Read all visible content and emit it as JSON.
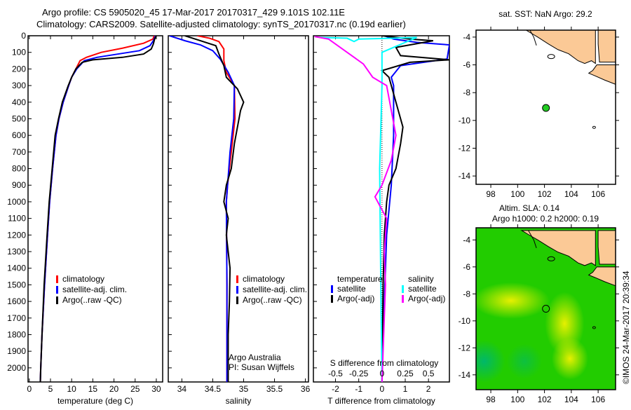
{
  "title_line1": "Argo profile: CS 5905020_45 17-Mar-2017 20170317_429 9.101S 102.11E",
  "title_line2": "Climatology: CARS2009. Satellite-adjusted climatology: synTS_20170317.nc (0.19d earlier)",
  "credit": "Argo Australia",
  "pi": "PI: Susan Wijffels",
  "copyright": "©IMOS 24-Mar-2017 20:39:34",
  "colors": {
    "climatology": "#ff0000",
    "satellite": "#0000ff",
    "argo": "#000000",
    "sal_satellite": "#00ffff",
    "sal_argo": "#ff00ff",
    "land": "#fbc996",
    "float_marker": "#22cc22"
  },
  "chart_data": [
    {
      "type": "line",
      "xlabel": "temperature (deg C)",
      "ylabel": "",
      "xlim": [
        -0.3,
        31.5
      ],
      "ylim": [
        2085,
        0
      ],
      "xticks": [
        0,
        5,
        10,
        15,
        20,
        25,
        30
      ],
      "yticks": [
        0,
        100,
        200,
        300,
        400,
        500,
        600,
        700,
        800,
        900,
        1000,
        1100,
        1200,
        1300,
        1400,
        1500,
        1600,
        1700,
        1800,
        1900,
        2000
      ],
      "legend": [
        "climatology",
        "satellite-adj. clim.",
        "Argo(..raw -QC)"
      ],
      "series": [
        {
          "name": "climatology",
          "color": "#ff0000",
          "points": [
            [
              29.5,
              0
            ],
            [
              29.2,
              20
            ],
            [
              27,
              45
            ],
            [
              22,
              75
            ],
            [
              17,
              100
            ],
            [
              13.5,
              130
            ],
            [
              12,
              150
            ],
            [
              11,
              200
            ],
            [
              10,
              250
            ],
            [
              9.3,
              300
            ],
            [
              8,
              400
            ],
            [
              7,
              500
            ],
            [
              6.3,
              600
            ],
            [
              5.5,
              800
            ],
            [
              4.8,
              1000
            ],
            [
              4.3,
              1200
            ],
            [
              3.6,
              1500
            ],
            [
              3.0,
              1800
            ],
            [
              2.7,
              2000
            ],
            [
              2.6,
              2085
            ]
          ]
        },
        {
          "name": "satellite-adj. clim.",
          "color": "#0000ff",
          "points": [
            [
              29.8,
              0
            ],
            [
              29.3,
              30
            ],
            [
              28.5,
              60
            ],
            [
              26,
              90
            ],
            [
              21,
              110
            ],
            [
              16,
              130
            ],
            [
              13,
              150
            ],
            [
              11.2,
              200
            ],
            [
              10,
              250
            ],
            [
              9.3,
              300
            ],
            [
              8,
              400
            ],
            [
              7,
              500
            ],
            [
              6.3,
              600
            ],
            [
              5.5,
              800
            ],
            [
              4.8,
              1000
            ],
            [
              4.3,
              1200
            ],
            [
              3.6,
              1500
            ],
            [
              3.0,
              1800
            ],
            [
              2.7,
              2000
            ],
            [
              2.6,
              2085
            ]
          ]
        },
        {
          "name": "Argo(..raw -QC)",
          "color": "#000000",
          "points": [
            [
              30,
              0
            ],
            [
              29.6,
              20
            ],
            [
              29.3,
              50
            ],
            [
              28.8,
              80
            ],
            [
              27,
              110
            ],
            [
              22,
              130
            ],
            [
              15,
              145
            ],
            [
              12.5,
              160
            ],
            [
              11,
              200
            ],
            [
              10,
              250
            ],
            [
              9.2,
              300
            ],
            [
              7.8,
              400
            ],
            [
              6.9,
              500
            ],
            [
              6.1,
              600
            ],
            [
              5.4,
              800
            ],
            [
              4.7,
              1000
            ],
            [
              4.2,
              1200
            ],
            [
              3.5,
              1500
            ],
            [
              3.0,
              1800
            ],
            [
              2.7,
              2000
            ],
            [
              2.6,
              2085
            ]
          ]
        }
      ]
    },
    {
      "type": "line",
      "xlabel": "salinity",
      "xlim": [
        33.78,
        36.05
      ],
      "ylim": [
        2085,
        0
      ],
      "xticks": [
        34,
        34.5,
        35,
        35.5,
        36
      ],
      "legend": [
        "climatology",
        "satellite-adj. clim.",
        "Argo(..raw -QC)"
      ],
      "series": [
        {
          "name": "climatology",
          "color": "#ff0000",
          "points": [
            [
              34.25,
              0
            ],
            [
              34.45,
              15
            ],
            [
              34.6,
              35
            ],
            [
              34.68,
              80
            ],
            [
              34.68,
              150
            ],
            [
              34.72,
              220
            ],
            [
              34.85,
              300
            ],
            [
              34.86,
              500
            ],
            [
              34.8,
              700
            ],
            [
              34.74,
              900
            ],
            [
              34.72,
              1000
            ],
            [
              34.73,
              1500
            ],
            [
              34.73,
              2085
            ]
          ]
        },
        {
          "name": "satellite-adj. clim.",
          "color": "#0000ff",
          "points": [
            [
              33.8,
              0
            ],
            [
              34.05,
              30
            ],
            [
              34.3,
              55
            ],
            [
              34.5,
              90
            ],
            [
              34.62,
              140
            ],
            [
              34.75,
              220
            ],
            [
              34.85,
              300
            ],
            [
              34.84,
              500
            ],
            [
              34.78,
              700
            ],
            [
              34.72,
              1000
            ],
            [
              34.73,
              1500
            ],
            [
              34.73,
              2085
            ]
          ]
        },
        {
          "name": "Argo(..raw -QC)",
          "color": "#000000",
          "points": [
            [
              34.05,
              0
            ],
            [
              34.3,
              30
            ],
            [
              34.55,
              60
            ],
            [
              34.6,
              110
            ],
            [
              34.68,
              180
            ],
            [
              34.72,
              250
            ],
            [
              34.9,
              320
            ],
            [
              35.0,
              400
            ],
            [
              34.95,
              450
            ],
            [
              34.9,
              550
            ],
            [
              34.85,
              650
            ],
            [
              34.8,
              800
            ],
            [
              34.72,
              900
            ],
            [
              34.68,
              1000
            ],
            [
              34.75,
              1100
            ],
            [
              34.72,
              1200
            ],
            [
              34.78,
              1400
            ],
            [
              34.77,
              1600
            ],
            [
              34.75,
              1800
            ],
            [
              34.75,
              2085
            ]
          ]
        }
      ]
    },
    {
      "type": "line",
      "xlabel": "T difference from climatology",
      "xlabel_top": "S difference from climatology",
      "xlim": [
        -2.95,
        2.9
      ],
      "ylim": [
        2085,
        0
      ],
      "xticks": [
        -2,
        -1,
        0,
        1,
        2
      ],
      "xticks_top": [
        "-0.5",
        "-0.25",
        "0",
        "0.25",
        "0.5"
      ],
      "legend": {
        "temperature_header": "temperature",
        "salinity_header": "salinity",
        "items": [
          "satellite",
          "Argo(-adj)",
          "satellite",
          "Argo(-adj)"
        ]
      },
      "series": [
        {
          "name": "T satellite",
          "color": "#0000ff",
          "points": [
            [
              0.1,
              0
            ],
            [
              0.5,
              20
            ],
            [
              1.5,
              40
            ],
            [
              2.9,
              55
            ],
            [
              2.8,
              140
            ],
            [
              0.8,
              180
            ],
            [
              0.4,
              250
            ],
            [
              0.5,
              300
            ],
            [
              0.5,
              600
            ],
            [
              0.4,
              900
            ],
            [
              0.2,
              1200
            ],
            [
              0.05,
              1800
            ],
            [
              0,
              2085
            ]
          ]
        },
        {
          "name": "T Argo(-adj)",
          "color": "#000000",
          "points": [
            [
              0,
              0
            ],
            [
              1.2,
              20
            ],
            [
              2.2,
              30
            ],
            [
              0.6,
              70
            ],
            [
              0.8,
              120
            ],
            [
              2.9,
              145
            ],
            [
              1.2,
              160
            ],
            [
              0,
              210
            ],
            [
              0.3,
              250
            ],
            [
              0.5,
              350
            ],
            [
              0.7,
              450
            ],
            [
              0.9,
              550
            ],
            [
              0.8,
              650
            ],
            [
              0.6,
              800
            ],
            [
              0.3,
              900
            ],
            [
              0.2,
              1000
            ],
            [
              0.1,
              1200
            ],
            [
              0.05,
              1500
            ],
            [
              0,
              2085
            ]
          ]
        },
        {
          "name": "S satellite",
          "color": "#00ffff",
          "points": [
            [
              -2.7,
              10
            ],
            [
              -1.5,
              15
            ],
            [
              -1.2,
              35
            ],
            [
              -1.0,
              20
            ],
            [
              0.5,
              15
            ],
            [
              1.5,
              10
            ],
            [
              0,
              100
            ],
            [
              0,
              300
            ],
            [
              -0.1,
              800
            ],
            [
              -0.05,
              1500
            ],
            [
              0,
              2085
            ]
          ]
        },
        {
          "name": "S Argo(-adj)",
          "color": "#ff00ff",
          "points": [
            [
              -2.9,
              5
            ],
            [
              -2.3,
              20
            ],
            [
              -2.0,
              50
            ],
            [
              -1.5,
              100
            ],
            [
              -0.8,
              170
            ],
            [
              -0.4,
              250
            ],
            [
              0.2,
              300
            ],
            [
              0.4,
              450
            ],
            [
              0.6,
              600
            ],
            [
              0.4,
              750
            ],
            [
              0,
              900
            ],
            [
              -0.3,
              970
            ],
            [
              0.2,
              1100
            ],
            [
              0.1,
              1300
            ],
            [
              0.15,
              1500
            ],
            [
              0,
              2085
            ]
          ]
        }
      ]
    },
    {
      "type": "map",
      "title": "sat. SST: NaN Argo: 29.2",
      "xlim": [
        96.9,
        107.3
      ],
      "ylim": [
        -14.6,
        -3.5
      ],
      "xticks": [
        98,
        100,
        102,
        104,
        106
      ],
      "yticks": [
        -4,
        -6,
        -8,
        -10,
        -12,
        -14
      ],
      "float_position": [
        102.11,
        -9.101
      ]
    },
    {
      "type": "heatmap",
      "title_line1": "Altim. SLA: 0.14",
      "title_line2": "Argo h1000: 0.2 h2000: 0.19",
      "xlim": [
        96.9,
        107.3
      ],
      "ylim": [
        -15.1,
        -3.1
      ],
      "xticks": [
        98,
        100,
        102,
        104,
        106
      ],
      "yticks": [
        -4,
        -6,
        -8,
        -10,
        -12,
        -14
      ],
      "float_position": [
        102.11,
        -9.101
      ]
    }
  ]
}
